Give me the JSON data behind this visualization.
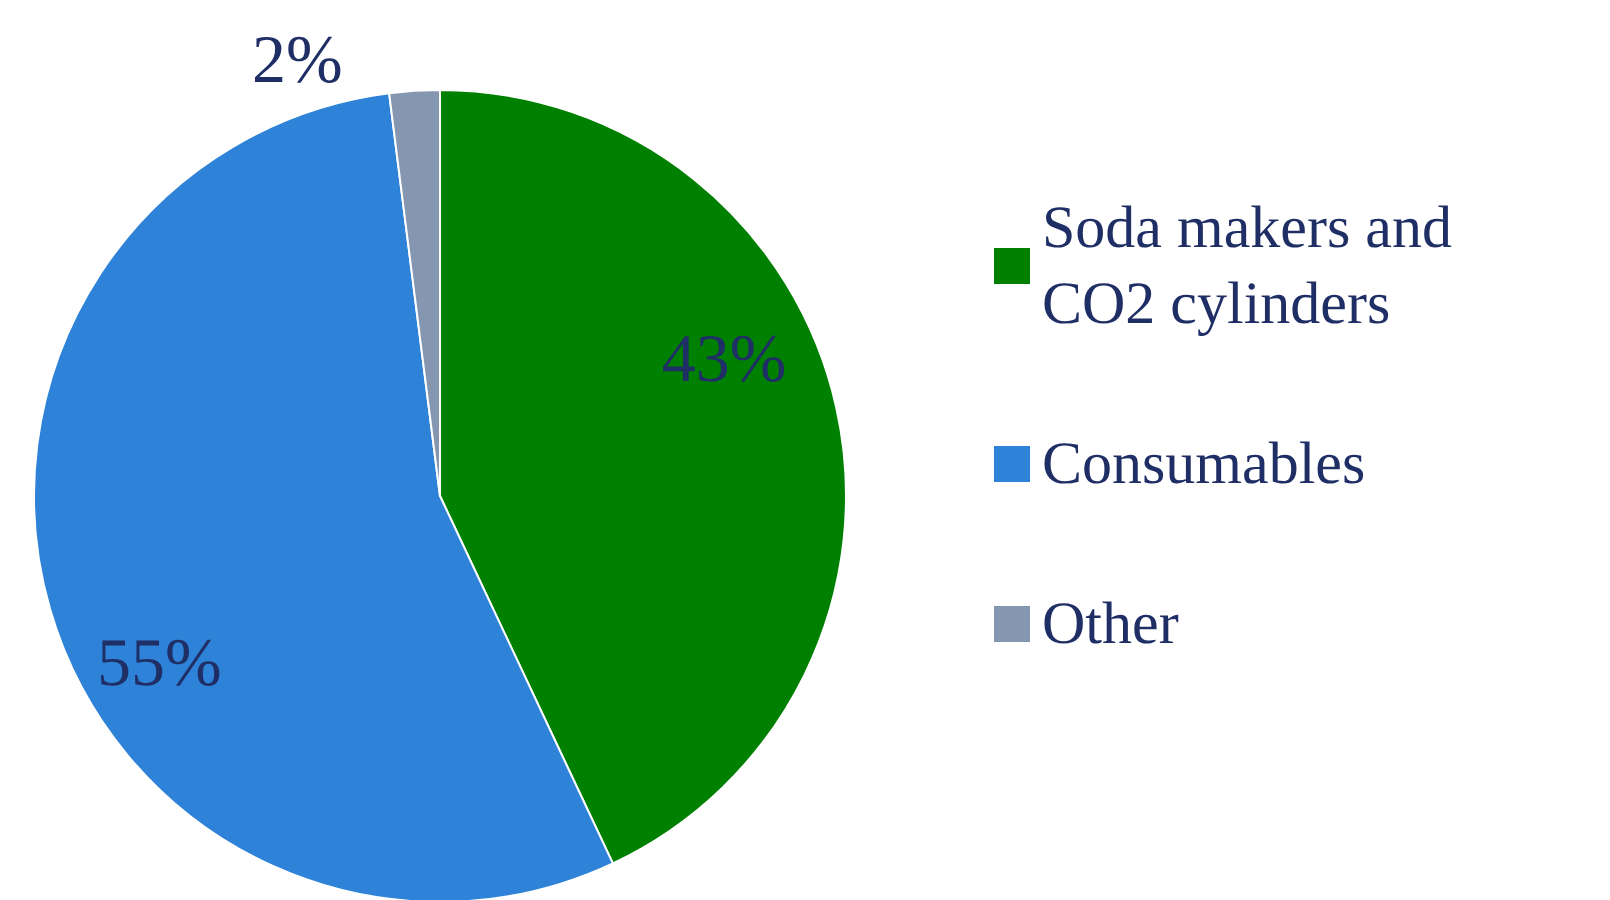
{
  "chart_data": {
    "type": "pie",
    "categories": [
      "Soda makers and CO2 cylinders",
      "Consumables",
      "Other"
    ],
    "values": [
      43,
      55,
      2
    ],
    "colors": [
      "#008000",
      "#2e83d9",
      "#8496b0"
    ],
    "value_labels": [
      "43%",
      "55%",
      "2%"
    ],
    "legend": "right"
  }
}
